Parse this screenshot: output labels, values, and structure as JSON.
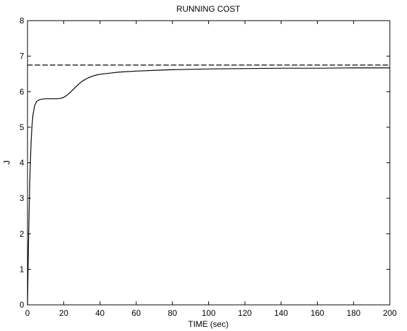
{
  "chart_data": {
    "type": "line",
    "title": "RUNNING COST",
    "xlabel": "TIME (sec)",
    "ylabel": "J",
    "xlim": [
      0,
      200
    ],
    "ylim": [
      0,
      8
    ],
    "grid": false,
    "legend": "none",
    "xticks": [
      "0",
      "20",
      "40",
      "60",
      "80",
      "100",
      "120",
      "140",
      "160",
      "180",
      "200"
    ],
    "yticks": [
      "0",
      "1",
      "2",
      "3",
      "4",
      "5",
      "6",
      "7",
      "8"
    ],
    "series": [
      {
        "style": "solid",
        "color": "#000000",
        "x": [
          0,
          0.5,
          1,
          1.5,
          2,
          2.5,
          3,
          4,
          5,
          6,
          7,
          8,
          10,
          12,
          14,
          16,
          18,
          20,
          22,
          24,
          26,
          28,
          30,
          32,
          34,
          36,
          38,
          40,
          45,
          50,
          60,
          70,
          80,
          100,
          120,
          140,
          160,
          180,
          200
        ],
        "y": [
          0,
          1.6,
          2.9,
          3.9,
          4.6,
          5.05,
          5.35,
          5.62,
          5.72,
          5.76,
          5.78,
          5.79,
          5.8,
          5.8,
          5.8,
          5.8,
          5.81,
          5.84,
          5.91,
          6.0,
          6.1,
          6.2,
          6.29,
          6.35,
          6.4,
          6.44,
          6.47,
          6.49,
          6.52,
          6.55,
          6.58,
          6.6,
          6.62,
          6.64,
          6.65,
          6.66,
          6.66,
          6.67,
          6.67
        ]
      },
      {
        "style": "dashed",
        "color": "#000000",
        "x": [
          0,
          200
        ],
        "y": [
          6.75,
          6.75
        ]
      }
    ]
  }
}
